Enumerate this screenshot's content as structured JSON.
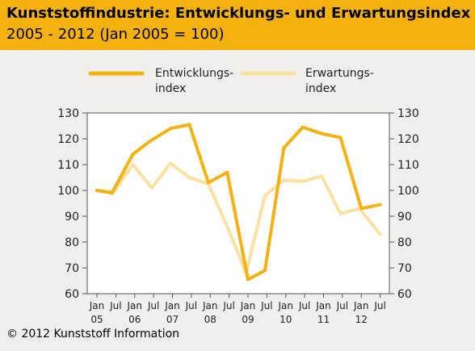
{
  "header": {
    "title": "Kunststoffindustrie: Entwicklungs- und Erwartungsindex",
    "subtitle": "2005 - 2012 (Jan 2005 = 100)"
  },
  "footer": {
    "copyright": "© 2012 Kunststoff Information"
  },
  "colors": {
    "header_bg": "#f5b10d",
    "background": "#f1efeb",
    "entwicklung": "#f5b10d",
    "erwartung": "#fbe0a0"
  },
  "chart_data": {
    "type": "line",
    "title": "Kunststoffindustrie: Entwicklungs- und Erwartungsindex",
    "subtitle": "2005 - 2012 (Jan 2005 = 100)",
    "x": [
      "Jan 05",
      "Jul 05",
      "Jan 06",
      "Jul 06",
      "Jan 07",
      "Jul 07",
      "Jan 08",
      "Jul 08",
      "Jan 09",
      "Jul 09",
      "Jan 10",
      "Jul 10",
      "Jan 11",
      "Jul 11",
      "Jan 12",
      "Jul 12"
    ],
    "tick_labels": [
      {
        "top": "Jan",
        "bottom": "05"
      },
      {
        "top": "Jul",
        "bottom": ""
      },
      {
        "top": "Jan",
        "bottom": "06"
      },
      {
        "top": "Jul",
        "bottom": ""
      },
      {
        "top": "Jan",
        "bottom": "07"
      },
      {
        "top": "Jul",
        "bottom": ""
      },
      {
        "top": "Jan",
        "bottom": "08"
      },
      {
        "top": "Jul",
        "bottom": ""
      },
      {
        "top": "Jan",
        "bottom": "09"
      },
      {
        "top": "Jul",
        "bottom": ""
      },
      {
        "top": "Jan",
        "bottom": "10"
      },
      {
        "top": "Jul",
        "bottom": ""
      },
      {
        "top": "Jan",
        "bottom": "11"
      },
      {
        "top": "Jul",
        "bottom": ""
      },
      {
        "top": "Jan",
        "bottom": "12"
      },
      {
        "top": "Jul",
        "bottom": ""
      }
    ],
    "series": [
      {
        "name": "Entwicklungs-\nindex",
        "color": "#f5b10d",
        "values": [
          {
            "x": 0.0,
            "y": 100
          },
          {
            "x": 0.8,
            "y": 99
          },
          {
            "x": 1.9,
            "y": 114
          },
          {
            "x": 2.8,
            "y": 119
          },
          {
            "x": 3.9,
            "y": 124
          },
          {
            "x": 4.9,
            "y": 125.5
          },
          {
            "x": 5.9,
            "y": 103
          },
          {
            "x": 6.9,
            "y": 107
          },
          {
            "x": 8.0,
            "y": 65.5
          },
          {
            "x": 8.9,
            "y": 69
          },
          {
            "x": 9.9,
            "y": 116.5
          },
          {
            "x": 10.9,
            "y": 124.5
          },
          {
            "x": 11.9,
            "y": 122
          },
          {
            "x": 12.9,
            "y": 120.5
          },
          {
            "x": 14.0,
            "y": 93
          },
          {
            "x": 15.0,
            "y": 94.5
          }
        ]
      },
      {
        "name": "Erwartungs-\nindex",
        "color": "#fbe0a0",
        "values": [
          {
            "x": 0.0,
            "y": 100
          },
          {
            "x": 0.9,
            "y": 99.5
          },
          {
            "x": 1.9,
            "y": 110
          },
          {
            "x": 2.9,
            "y": 101
          },
          {
            "x": 3.9,
            "y": 110.5
          },
          {
            "x": 4.9,
            "y": 105
          },
          {
            "x": 5.9,
            "y": 102.5
          },
          {
            "x": 6.9,
            "y": 86
          },
          {
            "x": 7.9,
            "y": 68
          },
          {
            "x": 8.9,
            "y": 98
          },
          {
            "x": 9.9,
            "y": 104
          },
          {
            "x": 10.9,
            "y": 103.5
          },
          {
            "x": 11.9,
            "y": 105.5
          },
          {
            "x": 12.9,
            "y": 91
          },
          {
            "x": 13.9,
            "y": 93
          },
          {
            "x": 15.0,
            "y": 83
          }
        ]
      }
    ],
    "ylim": [
      60,
      130
    ],
    "yticks": [
      60,
      70,
      80,
      90,
      100,
      110,
      120,
      130
    ],
    "y_axis_both_sides": true,
    "grid": false,
    "legend_position": "top"
  }
}
